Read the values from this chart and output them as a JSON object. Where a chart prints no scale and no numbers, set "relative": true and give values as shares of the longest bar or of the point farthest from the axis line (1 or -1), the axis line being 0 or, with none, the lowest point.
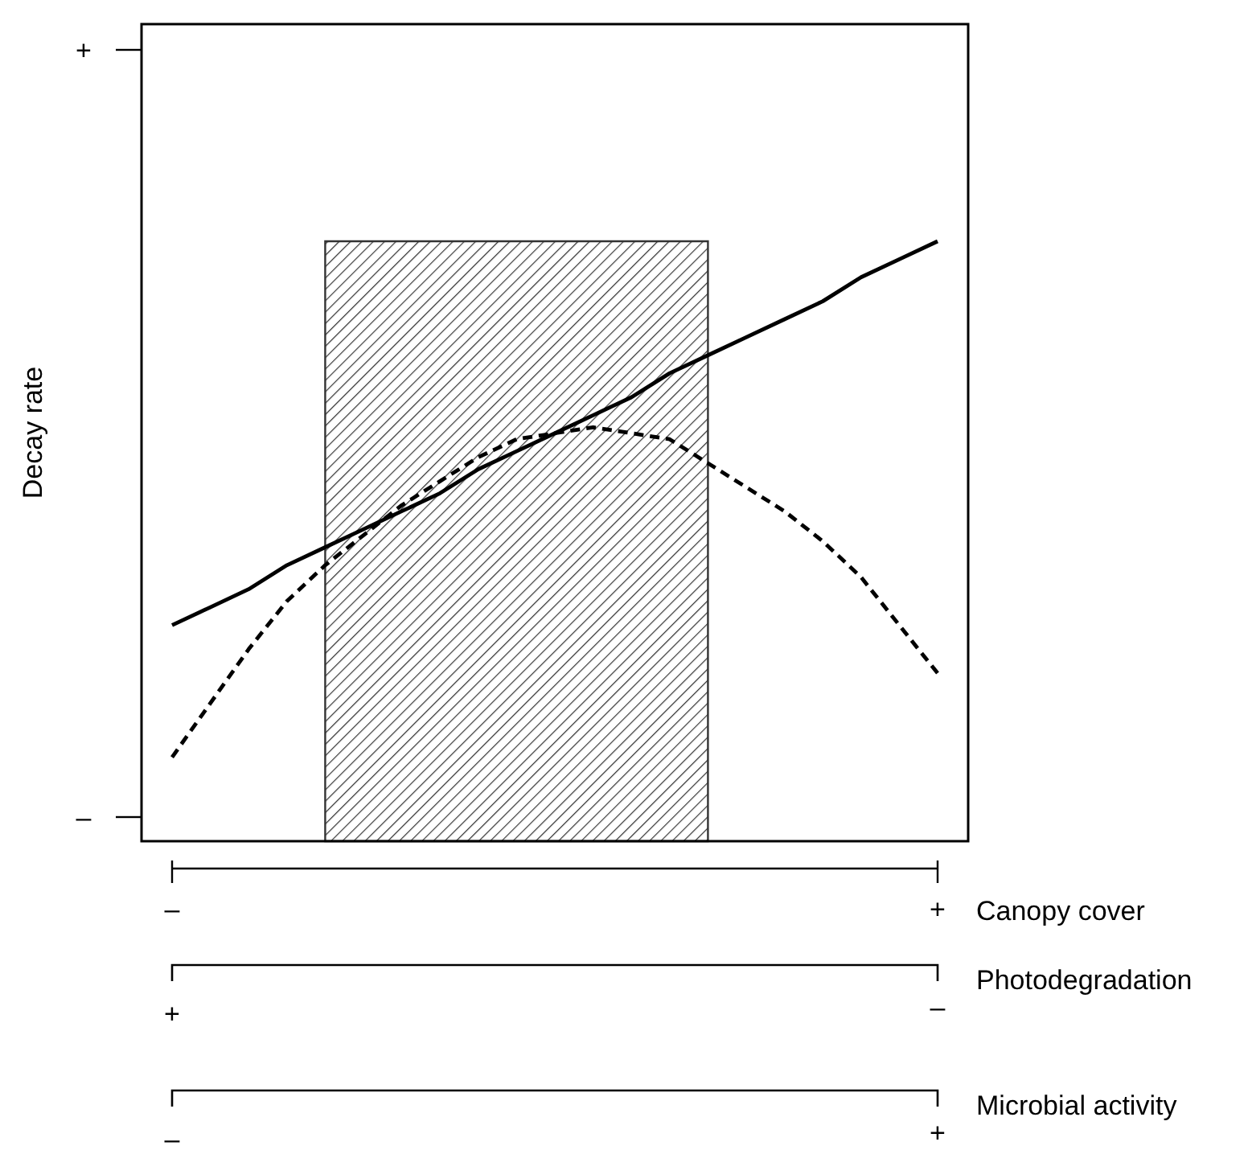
{
  "chart_data": {
    "type": "line",
    "relative": true,
    "xlabel": "Canopy cover",
    "ylabel": "Decay rate",
    "categories": [
      "–",
      null,
      null,
      null,
      null,
      null,
      null,
      null,
      null,
      null,
      null,
      null,
      null,
      null,
      null,
      null,
      null,
      null,
      null,
      null,
      "+"
    ],
    "series": [
      {
        "type": "area",
        "color": "#333333",
        "values": [
          null,
          null,
          null,
          null,
          1,
          1,
          1,
          1,
          1,
          1,
          1,
          1,
          1,
          1,
          1,
          null,
          null,
          null,
          null,
          null,
          null
        ]
      },
      {
        "color": "#000000",
        "line_style": "solid",
        "values": [
          0.36,
          0.39,
          0.42,
          0.46,
          0.49,
          0.52,
          0.55,
          0.58,
          0.62,
          0.65,
          0.68,
          0.71,
          0.74,
          0.78,
          0.81,
          0.84,
          0.87,
          0.9,
          0.94,
          0.97,
          1
        ]
      },
      {
        "color": "#000000",
        "line_style": "dashed",
        "values": [
          0.14,
          0.23,
          0.32,
          0.4,
          0.46,
          0.51,
          0.56,
          0.6,
          0.64,
          0.67,
          0.68,
          0.69,
          0.68,
          0.67,
          0.63,
          0.59,
          0.55,
          0.5,
          0.44,
          0.36,
          0.28
        ]
      }
    ],
    "annotations": [
      "+",
      "–",
      "Photodegradation",
      "+",
      "–",
      "Microbial activity",
      "–",
      "+"
    ]
  }
}
